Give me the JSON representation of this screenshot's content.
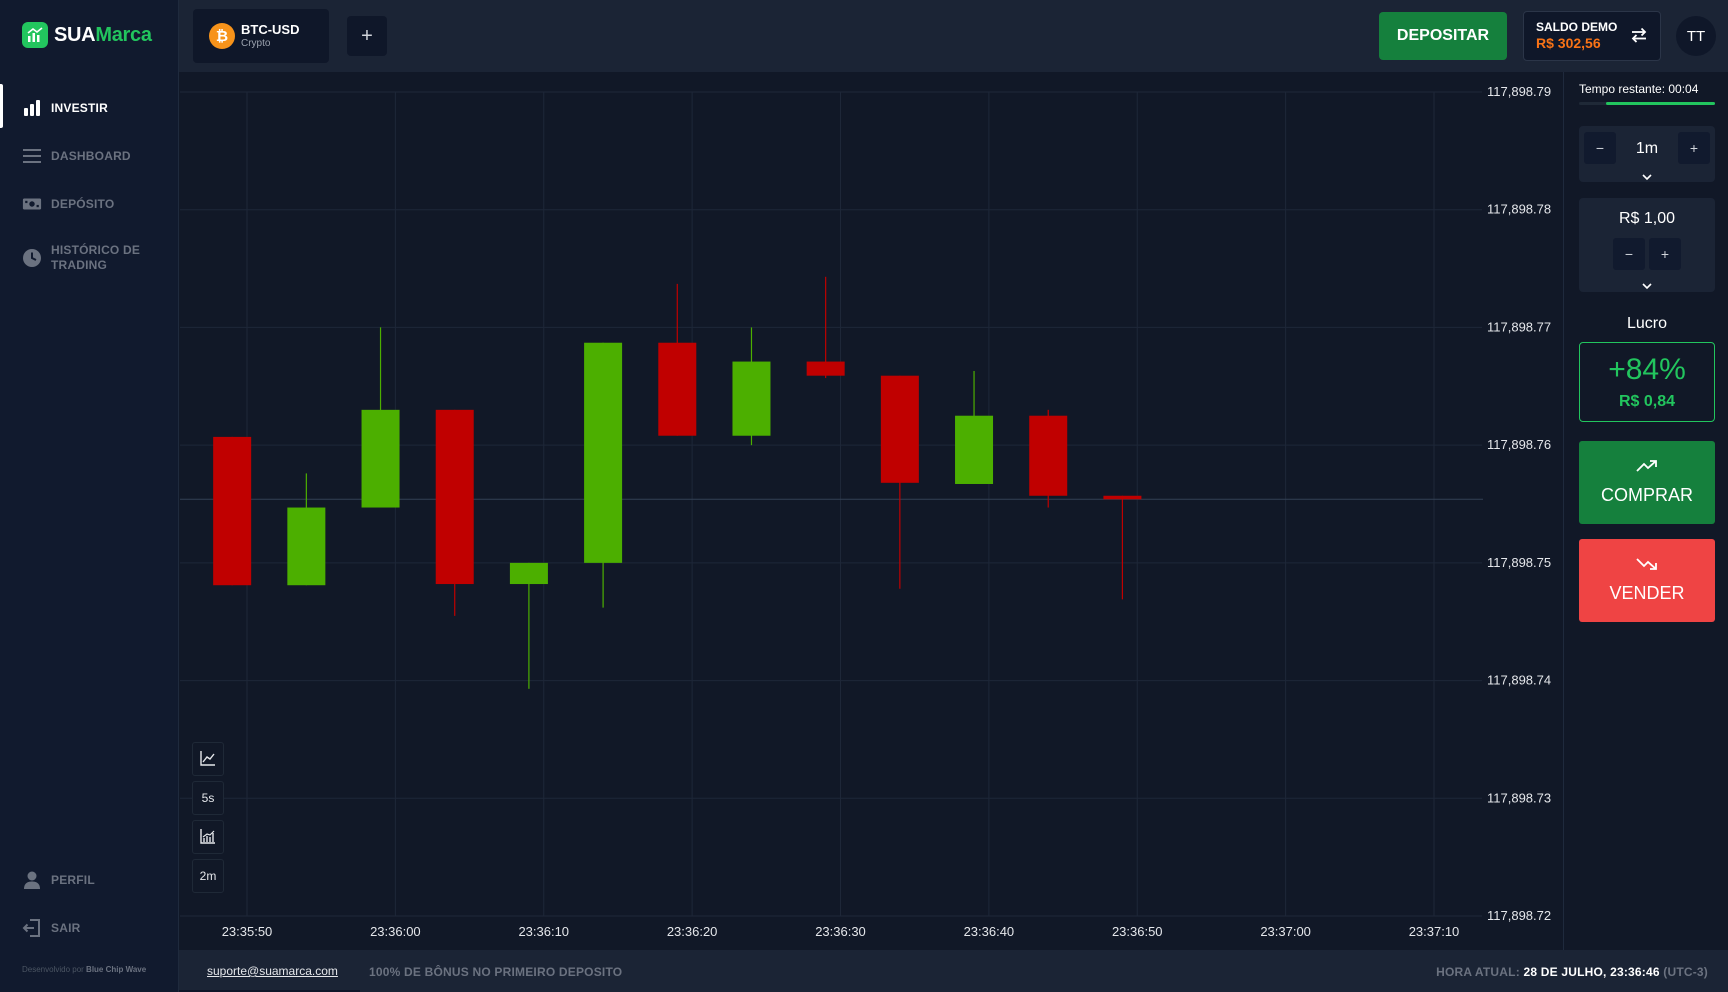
{
  "brand": {
    "name_part1": "SUA",
    "name_part2": "Marca",
    "credit_prefix": "Desenvolvido por",
    "credit_name": "Blue Chip Wave"
  },
  "sidebar": {
    "items": [
      {
        "label": "INVESTIR",
        "icon": "bar-chart-icon",
        "active": true
      },
      {
        "label": "DASHBOARD",
        "icon": "menu-lines-icon",
        "active": false
      },
      {
        "label": "DEPÓSITO",
        "icon": "cash-icon",
        "active": false
      },
      {
        "label": "HISTÓRICO DE TRADING",
        "icon": "clock-icon",
        "active": false
      }
    ],
    "bottom_items": [
      {
        "label": "PERFIL",
        "icon": "user-icon"
      },
      {
        "label": "SAIR",
        "icon": "logout-icon"
      }
    ]
  },
  "header": {
    "asset": {
      "symbol": "BTC-USD",
      "type": "Crypto",
      "icon": "bitcoin-icon"
    },
    "add_tab_label": "+",
    "deposit_label": "DEPOSITAR",
    "balance": {
      "label": "SALDO DEMO",
      "value": "R$ 302,56",
      "icon": "swap-arrows-icon"
    },
    "avatar_initials": "TT"
  },
  "chart_tools": [
    {
      "label": "",
      "icon": "line-chart-icon"
    },
    {
      "label": "5s",
      "icon": ""
    },
    {
      "label": "",
      "icon": "indicators-icon"
    },
    {
      "label": "2m",
      "icon": ""
    }
  ],
  "chart_data": {
    "type": "candlestick",
    "y_ticks": [
      "117,898.79",
      "117,898.78",
      "117,898.77",
      "117,898.76",
      "117,898.75",
      "117,898.74",
      "117,898.73",
      "117,898.72"
    ],
    "ylim": [
      117898.72,
      117898.79
    ],
    "x_ticks": [
      "23:35:50",
      "23:36:00",
      "23:36:10",
      "23:36:20",
      "23:36:30",
      "23:36:40",
      "23:36:50",
      "23:37:00",
      "23:37:10"
    ],
    "current_price": 117898.7554,
    "candles": [
      {
        "t": "23:35:49",
        "open": 117898.7607,
        "high": 117898.7607,
        "low": 117898.7481,
        "close": 117898.7481
      },
      {
        "t": "23:35:54",
        "open": 117898.7481,
        "high": 117898.7576,
        "low": 117898.7481,
        "close": 117898.7547
      },
      {
        "t": "23:35:59",
        "open": 117898.7547,
        "high": 117898.77,
        "low": 117898.7547,
        "close": 117898.763
      },
      {
        "t": "23:36:04",
        "open": 117898.763,
        "high": 117898.763,
        "low": 117898.7455,
        "close": 117898.7482
      },
      {
        "t": "23:36:09",
        "open": 117898.7482,
        "high": 117898.75,
        "low": 117898.7393,
        "close": 117898.75
      },
      {
        "t": "23:36:14",
        "open": 117898.75,
        "high": 117898.7687,
        "low": 117898.7462,
        "close": 117898.7687
      },
      {
        "t": "23:36:19",
        "open": 117898.7687,
        "high": 117898.7737,
        "low": 117898.7608,
        "close": 117898.7608
      },
      {
        "t": "23:36:24",
        "open": 117898.7608,
        "high": 117898.77,
        "low": 117898.76,
        "close": 117898.7671
      },
      {
        "t": "23:36:29",
        "open": 117898.7671,
        "high": 117898.7743,
        "low": 117898.7657,
        "close": 117898.7659
      },
      {
        "t": "23:36:34",
        "open": 117898.7659,
        "high": 117898.7659,
        "low": 117898.7478,
        "close": 117898.7568
      },
      {
        "t": "23:36:39",
        "open": 117898.7567,
        "high": 117898.7663,
        "low": 117898.7567,
        "close": 117898.7625
      },
      {
        "t": "23:36:44",
        "open": 117898.7625,
        "high": 117898.763,
        "low": 117898.7547,
        "close": 117898.7557
      },
      {
        "t": "23:36:49",
        "open": 117898.7557,
        "high": 117898.7557,
        "low": 117898.7469,
        "close": 117898.7554
      }
    ],
    "colors": {
      "up": "#4caf00",
      "down": "#c00000",
      "grid": "#1e2738",
      "axis_text": "#e5e7eb"
    },
    "grid": true
  },
  "trade_panel": {
    "time_remaining": "Tempo restante: 00:04",
    "time_progress": 0.8,
    "duration": {
      "value": "1m",
      "minus": "−",
      "plus": "+"
    },
    "amount": {
      "value": "R$ 1,00",
      "minus": "−",
      "plus": "+"
    },
    "profit_label": "Lucro",
    "profit_percent": "+84%",
    "profit_amount": "R$ 0,84",
    "buy_label": "COMPRAR",
    "sell_label": "VENDER"
  },
  "footer": {
    "support_email": "suporte@suamarca.com",
    "promo": "100% DE BÔNUS NO PRIMEIRO DEPOSITO",
    "clock_label": "HORA ATUAL:",
    "clock_value": "28 DE JULHO, 23:36:46",
    "clock_tz": "(UTC-3)"
  },
  "colors": {
    "accent_green": "#22c55e",
    "button_green": "#15803d",
    "sell_red": "#ef4444",
    "balance_orange": "#f97316"
  }
}
